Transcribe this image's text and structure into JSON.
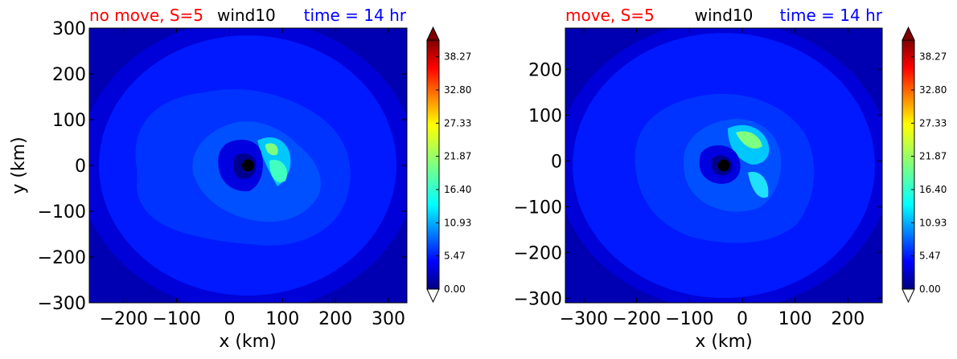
{
  "chart_data": [
    {
      "type": "heatmap",
      "title_left": "no move, S=5",
      "title_center": "wind10",
      "title_right": "time = 14 hr",
      "xlabel": "x (km)",
      "ylabel": "y (km)",
      "xlim": [
        -265,
        335
      ],
      "ylim": [
        -300,
        300
      ],
      "xticks": [
        -200,
        -100,
        0,
        100,
        200,
        300
      ],
      "xtick_labels": [
        "−200",
        "−100",
        "0",
        "100",
        "200",
        "300"
      ],
      "yticks": [
        -300,
        -200,
        -100,
        0,
        100,
        200,
        300
      ],
      "ytick_labels": [
        "−300",
        "−200",
        "−100",
        "0",
        "100",
        "200",
        "300"
      ],
      "center_marker": {
        "x": 35,
        "y": 0
      },
      "colorbar": {
        "min": 0.0,
        "max": 41.0,
        "ticks": [
          0.0,
          5.47,
          10.93,
          16.4,
          21.87,
          27.33,
          32.8,
          38.27
        ],
        "tick_labels": [
          "0.00",
          "5.47",
          "10.93",
          "16.40",
          "21.87",
          "27.33",
          "32.80",
          "38.27"
        ]
      }
    },
    {
      "type": "heatmap",
      "title_left": "move, S=5",
      "title_center": "wind10",
      "title_right": "time = 14 hr",
      "xlabel": "x (km)",
      "ylabel": "",
      "xlim": [
        -335,
        265
      ],
      "ylim": [
        -310,
        290
      ],
      "xticks": [
        -300,
        -200,
        -100,
        0,
        100,
        200
      ],
      "xtick_labels": [
        "−300",
        "−200",
        "−100",
        "0",
        "100",
        "200"
      ],
      "yticks": [
        -300,
        -200,
        -100,
        0,
        100,
        200
      ],
      "ytick_labels": [
        "−300",
        "−200",
        "−100",
        "0",
        "100",
        "200"
      ],
      "center_marker": {
        "x": -35,
        "y": -10
      },
      "colorbar": {
        "min": 0.0,
        "max": 41.0,
        "ticks": [
          0.0,
          5.47,
          10.93,
          16.4,
          21.87,
          27.33,
          32.8,
          38.27
        ],
        "tick_labels": [
          "0.00",
          "5.47",
          "10.93",
          "16.40",
          "21.87",
          "27.33",
          "32.80",
          "38.27"
        ]
      }
    }
  ],
  "colors": {
    "title_left": "#ff0000",
    "title_center": "#000000",
    "title_right": "#0000ff",
    "field_outer": "#0000b2",
    "field_mid": "#0019ff",
    "field_inner": "#0040ff"
  }
}
